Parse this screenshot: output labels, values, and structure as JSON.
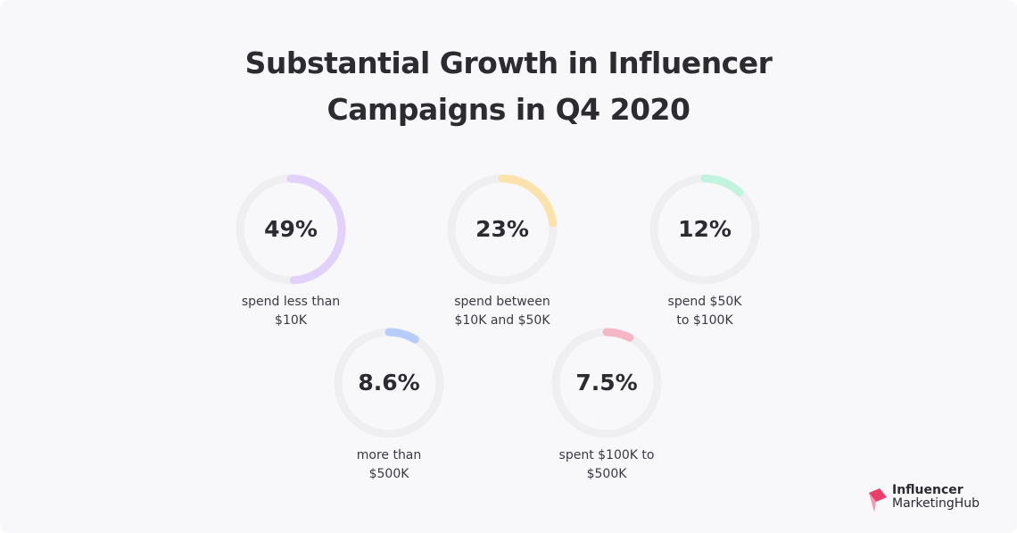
{
  "title_lines": [
    "Substantial Growth in Influencer",
    "Campaigns in Q4 2020"
  ],
  "chart_data": {
    "type": "pie",
    "title": "Substantial Growth in Influencer Campaigns in Q4 2020",
    "items": [
      {
        "value": 49,
        "label": "49%",
        "caption": [
          "spend less than",
          "$10K"
        ],
        "color": "#e2d1fb"
      },
      {
        "value": 23,
        "label": "23%",
        "caption": [
          "spend between",
          "$10K and $50K"
        ],
        "color": "#fde2ac"
      },
      {
        "value": 12,
        "label": "12%",
        "caption": [
          "spend $50K",
          "to $100K"
        ],
        "color": "#c2f3df"
      },
      {
        "value": 8.6,
        "label": "8.6%",
        "caption": [
          "more than",
          "$500K"
        ],
        "color": "#b6cdfb"
      },
      {
        "value": 7.5,
        "label": "7.5%",
        "caption": [
          "spent $100K to",
          "$500K"
        ],
        "color": "#f5b7c6"
      }
    ],
    "track_color": "#efeff1"
  },
  "logo": {
    "line1": "Influencer",
    "line2": "MarketingHub",
    "icon": "influencer-marketing-hub-logo-icon"
  }
}
